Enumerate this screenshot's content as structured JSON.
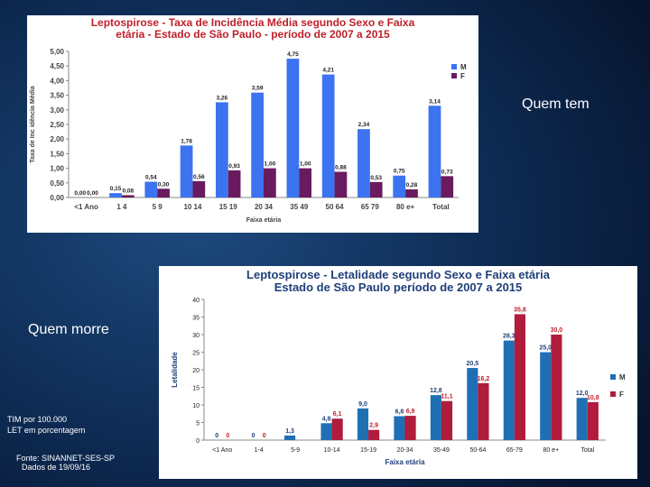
{
  "slide": {
    "quem_tem": "Quem tem",
    "quem_morre": "Quem morre",
    "note_tim": "TIM por 100.000",
    "note_let": "LET em porcentagem",
    "source": "Fonte: SINANNET-SES-SP",
    "date": "Dados de 19/09/16",
    "colors": {
      "background": "#0a1f3c",
      "panel": "#ffffff"
    }
  },
  "chart_data": [
    {
      "type": "bar",
      "title_line1": "Leptospirose - Taxa de Incidência Média segundo Sexo e Faixa",
      "title_line2": "etária - Estado de São Paulo - período de 2007 a 2015",
      "ylabel": "Taxa de Inc idência Média",
      "xlabel": "Faixa etária",
      "categories": [
        "<1 Ano",
        "1 4",
        "5 9",
        "10 14",
        "15 19",
        "20 34",
        "35 49",
        "50 64",
        "65 79",
        "80 e+",
        "Total"
      ],
      "series": [
        {
          "name": "M",
          "color": "#3b73f0",
          "values": [
            0.0,
            0.15,
            0.54,
            1.78,
            3.26,
            3.59,
            4.75,
            4.21,
            2.34,
            0.75,
            3.14
          ]
        },
        {
          "name": "F",
          "color": "#6a1a5e",
          "values": [
            0.0,
            0.08,
            0.3,
            0.56,
            0.93,
            1.0,
            1.0,
            0.88,
            0.53,
            0.28,
            0.73
          ]
        }
      ],
      "data_labels": [
        [
          "0,00",
          "0,15",
          "0,54",
          "1,78",
          "3,26",
          "3,59",
          "4,75",
          "4,21",
          "2,34",
          "0,75",
          "3,14"
        ],
        [
          "0,00",
          "0,08",
          "0,30",
          "0,56",
          "0,93",
          "1,00",
          "1,00",
          "0,88",
          "0,53",
          "0,28",
          "0,73"
        ]
      ],
      "yticks": [
        "0,00",
        "0,50",
        "1,00",
        "1,50",
        "2,00",
        "2,50",
        "3,00",
        "3,50",
        "4,00",
        "4,50",
        "5,00"
      ],
      "ylim": [
        0,
        5
      ],
      "grid": false,
      "legend": "top-right"
    },
    {
      "type": "bar",
      "title_line1": "Leptospirose - Letalidade segundo Sexo e Faixa etária",
      "title_line2": "Estado de São Paulo período de 2007 a 2015",
      "ylabel": "Letalidade",
      "xlabel": "Faixa etária",
      "categories": [
        "<1 Ano",
        "1-4",
        "5-9",
        "10-14",
        "15-19",
        "20-34",
        "35-49",
        "50-64",
        "65-79",
        "80 e+",
        "Total"
      ],
      "series": [
        {
          "name": "M",
          "color": "#1f6fb5",
          "label_color": "#1f3f7a",
          "values": [
            0.0,
            0.0,
            1.3,
            4.8,
            9.0,
            6.8,
            12.8,
            20.5,
            28.3,
            25.0,
            12.0
          ]
        },
        {
          "name": "F",
          "color": "#b01c3c",
          "label_color": "#c0202a",
          "values": [
            0.0,
            0.0,
            0.0,
            6.1,
            2.9,
            6.9,
            11.1,
            16.2,
            35.8,
            30.0,
            10.8
          ]
        }
      ],
      "data_labels": [
        [
          "0",
          "0",
          "1,3",
          "4,8",
          "9,0",
          "6,8",
          "12,8",
          "20,5",
          "28,3",
          "25,0",
          "12,0"
        ],
        [
          "0",
          "0",
          "",
          "6,1",
          "2,9",
          "6,9",
          "11,1",
          "16,2",
          "35,8",
          "30,0",
          "10,8"
        ]
      ],
      "yticks": [
        "0",
        "5",
        "10",
        "15",
        "20",
        "25",
        "30",
        "35",
        "40"
      ],
      "ylim": [
        0,
        40
      ],
      "grid": false,
      "legend": "right"
    }
  ]
}
